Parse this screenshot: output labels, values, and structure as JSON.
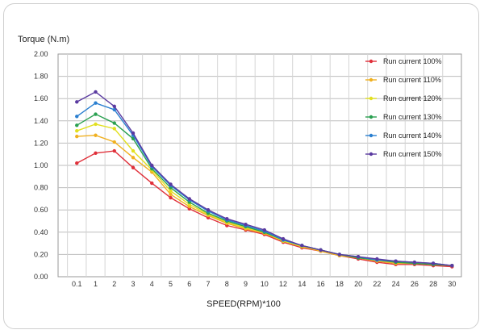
{
  "chart_data": {
    "type": "line",
    "title": "",
    "ylabel": "Torque (N.m)",
    "xlabel": "SPEED(RPM)*100",
    "ylim": [
      0,
      2
    ],
    "yticks": [
      "0.00",
      "0.20",
      "0.40",
      "0.60",
      "0.80",
      "1.00",
      "1.20",
      "1.40",
      "1.60",
      "1.80",
      "2.00"
    ],
    "categories": [
      "0.1",
      "1",
      "2",
      "3",
      "4",
      "5",
      "6",
      "7",
      "8",
      "9",
      "10",
      "12",
      "14",
      "16",
      "18",
      "20",
      "22",
      "24",
      "26",
      "28",
      "30"
    ],
    "legend_position": "right",
    "grid": true,
    "series": [
      {
        "name": "Run current 100%",
        "color": "#e0303a",
        "values": [
          1.02,
          1.11,
          1.13,
          0.98,
          0.84,
          0.71,
          0.61,
          0.53,
          0.46,
          0.42,
          0.38,
          0.31,
          0.26,
          0.23,
          0.19,
          0.16,
          0.13,
          0.11,
          0.11,
          0.1,
          0.09
        ]
      },
      {
        "name": "Run current 110%",
        "color": "#f0b020",
        "values": [
          1.26,
          1.27,
          1.21,
          1.07,
          0.94,
          0.74,
          0.63,
          0.55,
          0.48,
          0.43,
          0.39,
          0.32,
          0.27,
          0.23,
          0.19,
          0.17,
          0.14,
          0.12,
          0.12,
          0.11,
          0.1
        ]
      },
      {
        "name": "Run current 120%",
        "color": "#e2e020",
        "values": [
          1.31,
          1.37,
          1.33,
          1.13,
          0.96,
          0.77,
          0.65,
          0.56,
          0.49,
          0.44,
          0.4,
          0.32,
          0.27,
          0.24,
          0.2,
          0.17,
          0.15,
          0.13,
          0.12,
          0.11,
          0.1
        ]
      },
      {
        "name": "Run current 130%",
        "color": "#2aa050",
        "values": [
          1.36,
          1.46,
          1.38,
          1.24,
          0.97,
          0.8,
          0.67,
          0.57,
          0.5,
          0.45,
          0.4,
          0.33,
          0.28,
          0.24,
          0.2,
          0.17,
          0.15,
          0.13,
          0.12,
          0.11,
          0.1
        ]
      },
      {
        "name": "Run current 140%",
        "color": "#2a7fd0",
        "values": [
          1.44,
          1.56,
          1.5,
          1.27,
          0.99,
          0.82,
          0.69,
          0.59,
          0.51,
          0.46,
          0.41,
          0.33,
          0.28,
          0.24,
          0.2,
          0.18,
          0.15,
          0.14,
          0.13,
          0.12,
          0.1
        ]
      },
      {
        "name": "Run current 150%",
        "color": "#5a3aa0",
        "values": [
          1.57,
          1.66,
          1.53,
          1.29,
          1.0,
          0.83,
          0.7,
          0.6,
          0.52,
          0.47,
          0.42,
          0.34,
          0.28,
          0.24,
          0.2,
          0.18,
          0.16,
          0.14,
          0.13,
          0.12,
          0.1
        ]
      }
    ]
  }
}
